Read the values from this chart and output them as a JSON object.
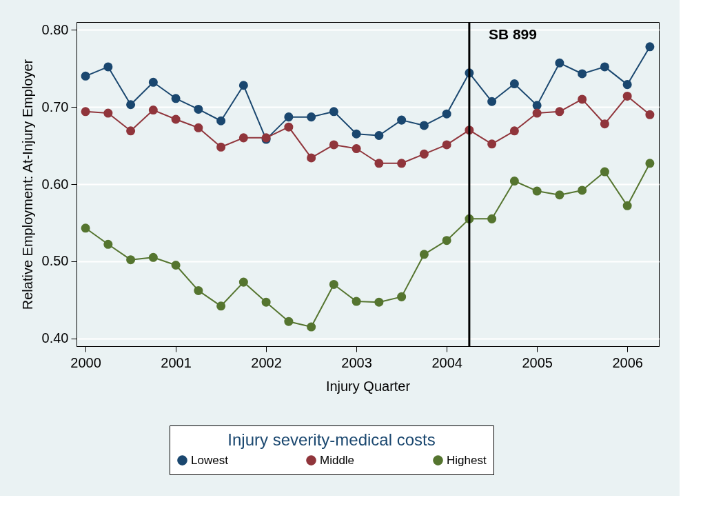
{
  "chart_data": {
    "type": "line",
    "xlabel": "Injury Quarter",
    "ylabel": "Relative Employment: At-Injury Employer",
    "legend_title": "Injury severity-medical costs",
    "x": [
      2000,
      2000.25,
      2000.5,
      2000.75,
      2001,
      2001.25,
      2001.5,
      2001.75,
      2002,
      2002.25,
      2002.5,
      2002.75,
      2003,
      2003.25,
      2003.5,
      2003.75,
      2004,
      2004.25,
      2004.5,
      2004.75,
      2005,
      2005.25,
      2005.5,
      2005.75,
      2006,
      2006.25
    ],
    "series": [
      {
        "name": "Lowest",
        "color": "#1a476f",
        "values": [
          0.74,
          0.752,
          0.703,
          0.732,
          0.711,
          0.697,
          0.682,
          0.728,
          0.658,
          0.687,
          0.687,
          0.694,
          0.665,
          0.663,
          0.683,
          0.676,
          0.691,
          0.744,
          0.707,
          0.73,
          0.702,
          0.757,
          0.743,
          0.752,
          0.729,
          0.778
        ]
      },
      {
        "name": "Middle",
        "color": "#90353b",
        "values": [
          0.694,
          0.692,
          0.669,
          0.696,
          0.684,
          0.673,
          0.648,
          0.66,
          0.66,
          0.674,
          0.634,
          0.651,
          0.646,
          0.627,
          0.627,
          0.639,
          0.651,
          0.67,
          0.652,
          0.669,
          0.692,
          0.694,
          0.71,
          0.678,
          0.714,
          0.69
        ]
      },
      {
        "name": "Highest",
        "color": "#55752f",
        "values": [
          0.543,
          0.522,
          0.502,
          0.505,
          0.495,
          0.462,
          0.442,
          0.473,
          0.447,
          0.422,
          0.415,
          0.47,
          0.448,
          0.447,
          0.454,
          0.509,
          0.527,
          0.555,
          0.555,
          0.604,
          0.591,
          0.586,
          0.592,
          0.616,
          0.572,
          0.627
        ]
      }
    ],
    "xlim": [
      1999.9,
      2006.35
    ],
    "xticks": [
      2000,
      2001,
      2002,
      2003,
      2004,
      2005,
      2006
    ],
    "ylim": [
      0.39,
      0.81
    ],
    "yticks": [
      {
        "value": 0.4,
        "label": "0.40"
      },
      {
        "value": 0.5,
        "label": "0.50"
      },
      {
        "value": 0.6,
        "label": "0.60"
      },
      {
        "value": 0.7,
        "label": "0.70"
      },
      {
        "value": 0.8,
        "label": "0.80"
      }
    ],
    "ref_lines": [
      {
        "axis": "x",
        "value": 2004.25,
        "label": "SB 899",
        "color": "#000000"
      }
    ],
    "grid": "y",
    "legend": "bottom",
    "marker": "circle",
    "line_style": "solid"
  }
}
